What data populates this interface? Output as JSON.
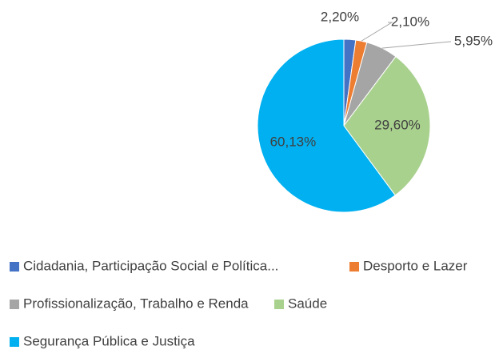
{
  "chart_data": {
    "type": "pie",
    "categories": [
      "Cidadania, Participação Social e Política...",
      "Desporto e Lazer",
      "Profissionalização, Trabalho e Renda",
      "Saúde",
      "Segurança Pública e Justiça"
    ],
    "values": [
      2.2,
      2.1,
      5.95,
      29.6,
      60.13
    ],
    "value_labels": [
      "2,20%",
      "2,10%",
      "5,95%",
      "29,60%",
      "60,13%"
    ],
    "colors": [
      "#4472c4",
      "#ed7d31",
      "#a5a5a5",
      "#a9d18e",
      "#00b0f0"
    ],
    "legend": "bottom"
  }
}
